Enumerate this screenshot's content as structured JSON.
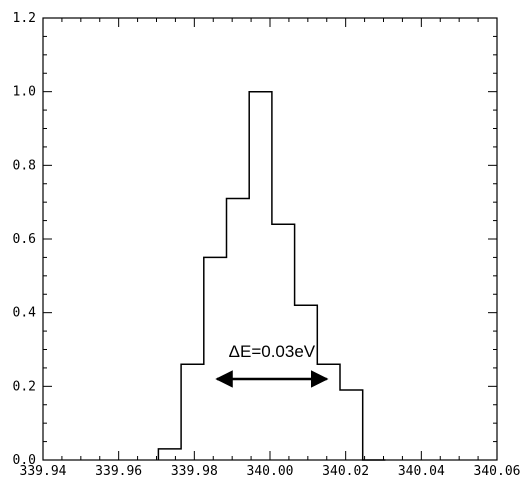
{
  "chart_data": {
    "type": "bar",
    "xlim": [
      339.94,
      340.06
    ],
    "ylim": [
      0.0,
      1.2
    ],
    "xticks": [
      "339.94",
      "339.96",
      "339.98",
      "340.00",
      "340.02",
      "340.04",
      "340.06"
    ],
    "yticks": [
      "0.0",
      "0.2",
      "0.4",
      "0.6",
      "0.8",
      "1.0",
      "1.2"
    ],
    "bin_edges": [
      339.9705,
      339.9765,
      339.9825,
      339.9885,
      339.9945,
      340.0005,
      340.0065,
      340.0125,
      340.0185,
      340.0245,
      340.0305
    ],
    "values": [
      0.03,
      0.26,
      0.55,
      0.71,
      1.0,
      0.64,
      0.42,
      0.26,
      0.19,
      0.0
    ],
    "annotation": {
      "text": "ΔE=0.03eV",
      "arrow_from": 339.986,
      "arrow_to": 340.015,
      "arrow_y": 0.22
    },
    "grid": false,
    "legend": "none"
  }
}
